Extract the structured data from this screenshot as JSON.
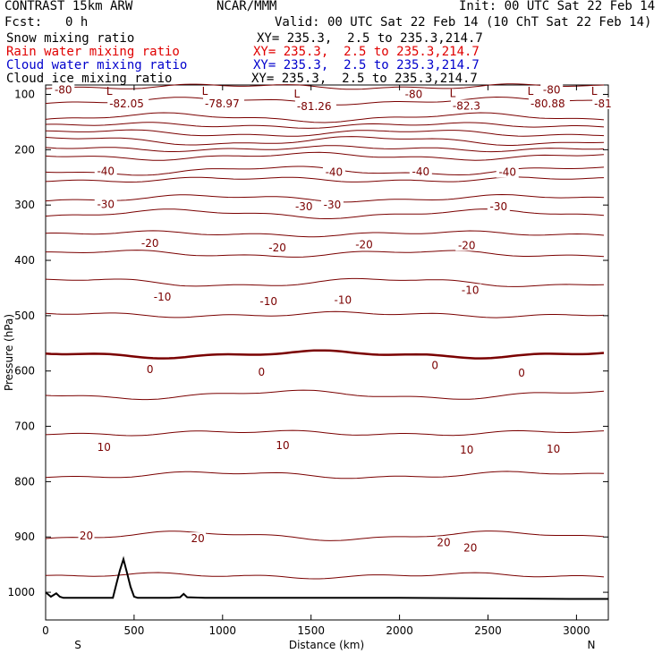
{
  "header": {
    "model": "CONTRAST 15km ARW",
    "org": "NCAR/MMM",
    "init": "Init: 00 UTC Sat 22 Feb 14",
    "fcst_label": "Fcst:",
    "fcst_value": "0 h",
    "valid": "Valid: 00 UTC Sat 22 Feb 14 (10 ChT Sat 22 Feb 14)",
    "fields": [
      {
        "label": "Snow mixing ratio",
        "xy": "XY= 235.3,  2.5 to 235.3,214.7",
        "color": "#000000"
      },
      {
        "label": "Rain water mixing ratio",
        "xy": "XY= 235.3,  2.5 to 235.3,214.7",
        "color": "#e00000"
      },
      {
        "label": "Cloud water mixing ratio",
        "xy": "XY= 235.3,  2.5 to 235.3,214.7",
        "color": "#0000cc"
      },
      {
        "label": "Cloud ice mixing ratio",
        "xy": "XY= 235.3,  2.5 to 235.3,214.7",
        "color": "#000000"
      }
    ]
  },
  "colors": {
    "contour": "#7a0000",
    "terrain": "#000000",
    "frame": "#000000"
  },
  "chart_data": {
    "type": "line",
    "title": "",
    "xlabel": "Distance (km)",
    "ylabel": "Pressure (hPa)",
    "xlim": [
      0,
      3180
    ],
    "ylim": [
      1050,
      83
    ],
    "x_ticks": [
      0,
      500,
      1000,
      1500,
      2000,
      2500,
      3000
    ],
    "y_ticks": [
      100,
      200,
      300,
      400,
      500,
      600,
      700,
      800,
      900,
      1000
    ],
    "x_end_labels": {
      "left": "S",
      "right": "N"
    },
    "contour_interval": 5,
    "isotherms": [
      {
        "level": -80,
        "label": "-80",
        "p": 86
      },
      {
        "level": -75,
        "label": "",
        "p": 112
      },
      {
        "level": -70,
        "label": "",
        "p": 142
      },
      {
        "level": -65,
        "label": "",
        "p": 156
      },
      {
        "level": -60,
        "label": "",
        "p": 170
      },
      {
        "level": -55,
        "label": "",
        "p": 184
      },
      {
        "level": -50,
        "label": "",
        "p": 198
      },
      {
        "level": -45,
        "label": "",
        "p": 212
      },
      {
        "level": -40,
        "label": "-40",
        "p": 238
      },
      {
        "level": -35,
        "label": "",
        "p": 254
      },
      {
        "level": -30,
        "label": "-30",
        "p": 288
      },
      {
        "level": -25,
        "label": "",
        "p": 316
      },
      {
        "level": -20,
        "label": "-20",
        "p": 352
      },
      {
        "level": -15,
        "label": "",
        "p": 388
      },
      {
        "level": -10,
        "label": "-10",
        "p": 440
      },
      {
        "level": -5,
        "label": "",
        "p": 498
      },
      {
        "level": 0,
        "label": "0",
        "p": 570
      },
      {
        "level": 5,
        "label": "",
        "p": 643
      },
      {
        "level": 10,
        "label": "10",
        "p": 712
      },
      {
        "level": 15,
        "label": "",
        "p": 788
      },
      {
        "level": 20,
        "label": "20",
        "p": 898
      },
      {
        "level": 25,
        "label": "",
        "p": 970
      }
    ],
    "contour_labels": [
      {
        "text": "-80",
        "x": 100,
        "p": 92
      },
      {
        "text": "-80",
        "x": 2080,
        "p": 100
      },
      {
        "text": "-80",
        "x": 2860,
        "p": 92
      },
      {
        "text": "-40",
        "x": 340,
        "p": 239
      },
      {
        "text": "-40",
        "x": 1630,
        "p": 241
      },
      {
        "text": "-40",
        "x": 2120,
        "p": 240
      },
      {
        "text": "-40",
        "x": 2610,
        "p": 241
      },
      {
        "text": "-30",
        "x": 340,
        "p": 299
      },
      {
        "text": "-30",
        "x": 1460,
        "p": 303
      },
      {
        "text": "-30",
        "x": 1620,
        "p": 300
      },
      {
        "text": "-30",
        "x": 2560,
        "p": 303
      },
      {
        "text": "-20",
        "x": 590,
        "p": 369
      },
      {
        "text": "-20",
        "x": 1310,
        "p": 377
      },
      {
        "text": "-20",
        "x": 1800,
        "p": 372
      },
      {
        "text": "-20",
        "x": 2380,
        "p": 373
      },
      {
        "text": "-10",
        "x": 660,
        "p": 466
      },
      {
        "text": "-10",
        "x": 1260,
        "p": 474
      },
      {
        "text": "-10",
        "x": 1680,
        "p": 472
      },
      {
        "text": "-10",
        "x": 2400,
        "p": 454
      },
      {
        "text": "0",
        "x": 590,
        "p": 597
      },
      {
        "text": "0",
        "x": 1220,
        "p": 602
      },
      {
        "text": "0",
        "x": 2200,
        "p": 590
      },
      {
        "text": "0",
        "x": 2690,
        "p": 604
      },
      {
        "text": "10",
        "x": 330,
        "p": 738
      },
      {
        "text": "10",
        "x": 1340,
        "p": 735
      },
      {
        "text": "10",
        "x": 2380,
        "p": 743
      },
      {
        "text": "10",
        "x": 2870,
        "p": 741
      },
      {
        "text": "20",
        "x": 230,
        "p": 898
      },
      {
        "text": "20",
        "x": 860,
        "p": 903
      },
      {
        "text": "20",
        "x": 2250,
        "p": 910
      },
      {
        "text": "20",
        "x": 2400,
        "p": 920
      }
    ],
    "lows": [
      {
        "letter": "L",
        "value": "-82.05",
        "x": 360,
        "p": 104
      },
      {
        "letter": "L",
        "value": "-78.97",
        "x": 900,
        "p": 104
      },
      {
        "letter": "L",
        "value": "-81.26",
        "x": 1420,
        "p": 109
      },
      {
        "letter": "L",
        "value": "-82.3",
        "x": 2300,
        "p": 108
      },
      {
        "letter": "L",
        "value": "-80.88",
        "x": 2740,
        "p": 104
      },
      {
        "letter": "L",
        "value": "-81",
        "x": 3100,
        "p": 104
      }
    ],
    "terrain": {
      "x": [
        0,
        30,
        60,
        80,
        100,
        380,
        400,
        420,
        440,
        460,
        480,
        500,
        520,
        700,
        760,
        780,
        800,
        900,
        1000,
        1500,
        2000,
        2500,
        3000,
        3180
      ],
      "p": [
        1000,
        1008,
        1002,
        1008,
        1010,
        1010,
        985,
        960,
        940,
        965,
        990,
        1008,
        1010,
        1010,
        1009,
        1003,
        1009,
        1010,
        1010,
        1010,
        1010,
        1011,
        1012,
        1012
      ]
    }
  }
}
